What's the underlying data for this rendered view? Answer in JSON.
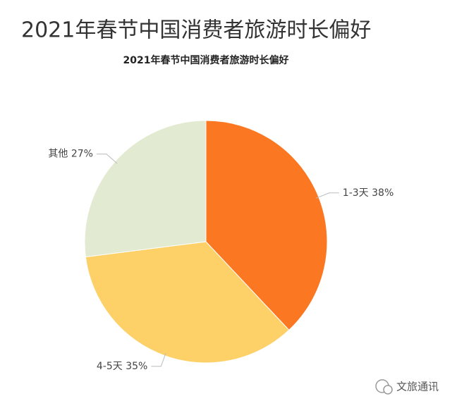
{
  "chart_data": {
    "type": "pie",
    "title": "2021年春节中国消费者旅游时长偏好",
    "subtitle": "2021年春节中国消费者旅游时长偏好",
    "categories": [
      "1-3天",
      "4-5天",
      "其他"
    ],
    "values": [
      38,
      35,
      27
    ],
    "value_labels": [
      "38%",
      "35%",
      "27%"
    ],
    "colors": [
      "#fb7722",
      "#fdd068",
      "#e2ead2"
    ]
  },
  "watermark": "文旅通讯"
}
